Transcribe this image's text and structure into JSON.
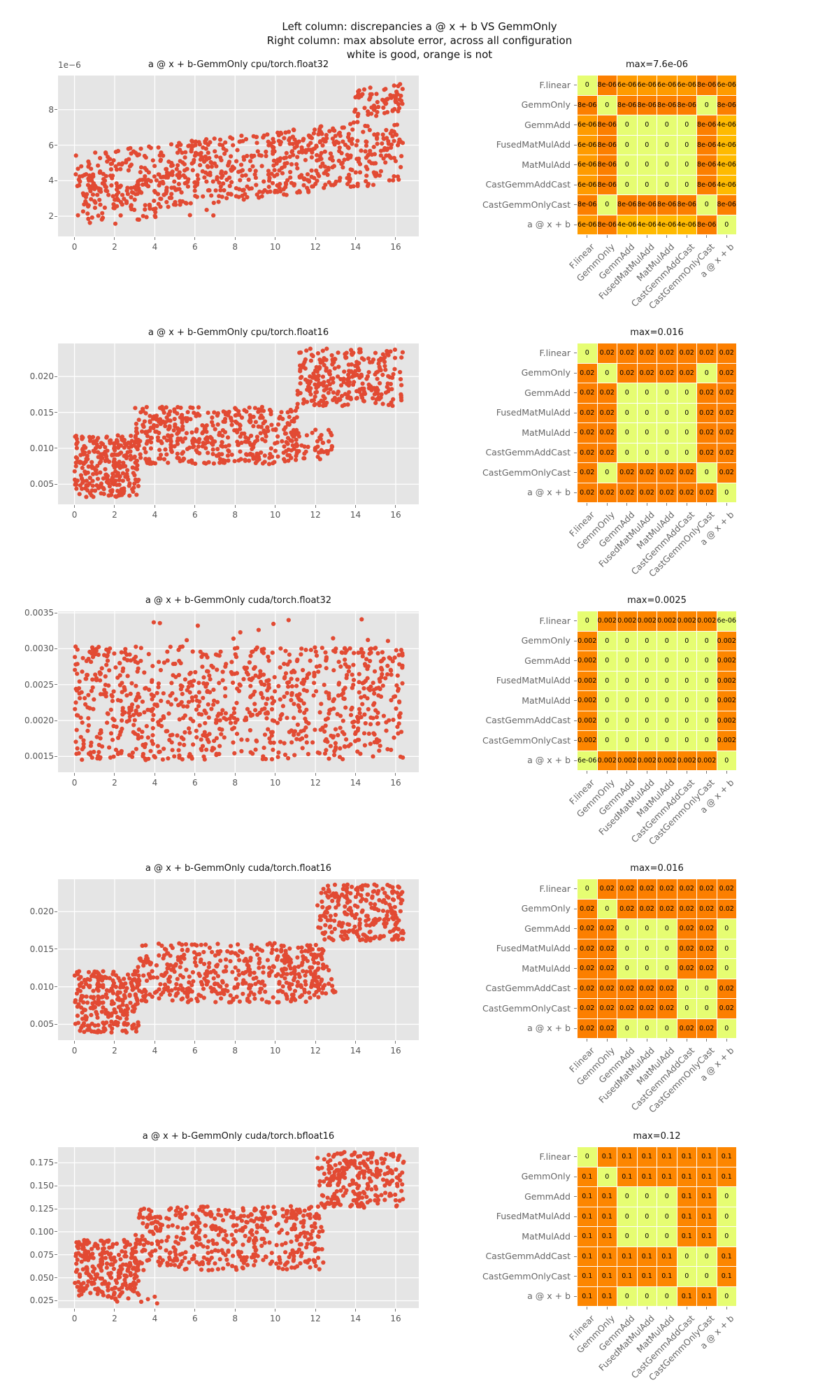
{
  "figure": {
    "title_lines": [
      "Left column: discrepancies a @ x + b VS GemmOnly",
      "Right column: max absolute error, across all configuration",
      "white is good, orange is not"
    ]
  },
  "labels": [
    "F.linear",
    "GemmOnly",
    "GemmAdd",
    "FusedMatMulAdd",
    "MatMulAdd",
    "CastGemmAddCast",
    "CastGemmOnlyCast",
    "a @ x + b"
  ],
  "colors": {
    "marker": "#e24a33",
    "plot_bg": "#e5e5e5",
    "grid": "#ffffff",
    "tick_label": "#555555",
    "heat_label": "#666666",
    "cell_text": "#000000",
    "colormap": "Wistia",
    "cmap_anchors": [
      [
        228,
        255,
        122
      ],
      [
        255,
        232,
        26
      ],
      [
        255,
        189,
        0
      ],
      [
        255,
        160,
        0
      ],
      [
        252,
        127,
        0
      ]
    ]
  },
  "chart_data": [
    {
      "scatter": {
        "type": "scatter",
        "title": "a @ x + b-GemmOnly cpu/torch.float32",
        "y_scale_label": "1e−6",
        "xlim": [
          -0.82,
          17.15
        ],
        "ylim": [
          0.86,
          9.92
        ],
        "xticks": [
          0,
          2,
          4,
          6,
          8,
          10,
          12,
          14,
          16
        ],
        "xtick_labels": [
          "0",
          "2",
          "4",
          "6",
          "8",
          "10",
          "12",
          "14",
          "16"
        ],
        "yticks": [
          2,
          4,
          6,
          8
        ],
        "ytick_labels": [
          "2",
          "4",
          "6",
          "8"
        ],
        "point_distribution": [
          {
            "x": [
              0,
              16.35
            ],
            "ylo": [
              1.9,
              3.9
            ],
            "yhi": [
              5.5,
              7.6
            ],
            "n": 800
          },
          {
            "x": [
              13.9,
              16.35
            ],
            "ylo": [
              7.5,
              7.8
            ],
            "yhi": [
              9.2,
              9.6
            ],
            "n": 70
          },
          {
            "x": [
              0.1,
              7.0
            ],
            "ylo": [
              1.4,
              1.8
            ],
            "yhi": [
              2.0,
              2.4
            ],
            "n": 18
          }
        ],
        "seed": 101
      },
      "heatmap": {
        "type": "heatmap",
        "title": "max=7.6e-06",
        "norm_map": {
          "0": 0.02,
          "4e-06": 0.53,
          "6e-06": 0.79,
          "8e-06": 1.0
        },
        "cells": [
          [
            "0",
            "8e-06",
            "6e-06",
            "6e-06",
            "6e-06",
            "6e-06",
            "8e-06",
            "6e-06"
          ],
          [
            "8e-06",
            "0",
            "8e-06",
            "8e-06",
            "8e-06",
            "8e-06",
            "0",
            "8e-06"
          ],
          [
            "6e-06",
            "8e-06",
            "0",
            "0",
            "0",
            "0",
            "8e-06",
            "4e-06"
          ],
          [
            "6e-06",
            "8e-06",
            "0",
            "0",
            "0",
            "0",
            "8e-06",
            "4e-06"
          ],
          [
            "6e-06",
            "8e-06",
            "0",
            "0",
            "0",
            "0",
            "8e-06",
            "4e-06"
          ],
          [
            "6e-06",
            "8e-06",
            "0",
            "0",
            "0",
            "0",
            "8e-06",
            "4e-06"
          ],
          [
            "8e-06",
            "0",
            "8e-06",
            "8e-06",
            "8e-06",
            "8e-06",
            "0",
            "8e-06"
          ],
          [
            "6e-06",
            "8e-06",
            "4e-06",
            "4e-06",
            "4e-06",
            "4e-06",
            "8e-06",
            "0"
          ]
        ]
      }
    },
    {
      "scatter": {
        "type": "scatter",
        "title": "a @ x + b-GemmOnly cpu/torch.float16",
        "y_scale_label": null,
        "xlim": [
          -0.82,
          17.15
        ],
        "ylim": [
          0.0022,
          0.0246
        ],
        "xticks": [
          0,
          2,
          4,
          6,
          8,
          10,
          12,
          14,
          16
        ],
        "xtick_labels": [
          "0",
          "2",
          "4",
          "6",
          "8",
          "10",
          "12",
          "14",
          "16"
        ],
        "yticks": [
          0.005,
          0.01,
          0.015,
          0.02
        ],
        "ytick_labels": [
          "0.005",
          "0.010",
          "0.015",
          "0.020"
        ],
        "point_distribution": [
          {
            "x": [
              0,
              3.2
            ],
            "ylo": [
              0.0032,
              0.0032
            ],
            "yhi": [
              0.0118,
              0.0118
            ],
            "n": 270
          },
          {
            "x": [
              3.0,
              11.1
            ],
            "ylo": [
              0.0078,
              0.0078
            ],
            "yhi": [
              0.0158,
              0.0158
            ],
            "n": 430
          },
          {
            "x": [
              10.6,
              12.9
            ],
            "ylo": [
              0.0082,
              0.0082
            ],
            "yhi": [
              0.0126,
              0.0126
            ],
            "n": 55
          },
          {
            "x": [
              11.1,
              16.4
            ],
            "ylo": [
              0.0159,
              0.0159
            ],
            "yhi": [
              0.0239,
              0.0239
            ],
            "n": 280
          }
        ],
        "seed": 202
      },
      "heatmap": {
        "type": "heatmap",
        "title": "max=0.016",
        "norm_map": {
          "0": 0.02,
          "0.02": 1.0
        },
        "cells": [
          [
            "0",
            "0.02",
            "0.02",
            "0.02",
            "0.02",
            "0.02",
            "0.02",
            "0.02"
          ],
          [
            "0.02",
            "0",
            "0.02",
            "0.02",
            "0.02",
            "0.02",
            "0",
            "0.02"
          ],
          [
            "0.02",
            "0.02",
            "0",
            "0",
            "0",
            "0",
            "0.02",
            "0.02"
          ],
          [
            "0.02",
            "0.02",
            "0",
            "0",
            "0",
            "0",
            "0.02",
            "0.02"
          ],
          [
            "0.02",
            "0.02",
            "0",
            "0",
            "0",
            "0",
            "0.02",
            "0.02"
          ],
          [
            "0.02",
            "0.02",
            "0",
            "0",
            "0",
            "0",
            "0.02",
            "0.02"
          ],
          [
            "0.02",
            "0",
            "0.02",
            "0.02",
            "0.02",
            "0.02",
            "0",
            "0.02"
          ],
          [
            "0.02",
            "0.02",
            "0.02",
            "0.02",
            "0.02",
            "0.02",
            "0.02",
            "0"
          ]
        ]
      }
    },
    {
      "scatter": {
        "type": "scatter",
        "title": "a @ x + b-GemmOnly cuda/torch.float32",
        "y_scale_label": null,
        "xlim": [
          -0.82,
          17.15
        ],
        "ylim": [
          0.00128,
          0.00352
        ],
        "xticks": [
          0,
          2,
          4,
          6,
          8,
          10,
          12,
          14,
          16
        ],
        "xtick_labels": [
          "0",
          "2",
          "4",
          "6",
          "8",
          "10",
          "12",
          "14",
          "16"
        ],
        "yticks": [
          0.0015,
          0.002,
          0.0025,
          0.003,
          0.0035
        ],
        "ytick_labels": [
          "0.0015",
          "0.0020",
          "0.0025",
          "0.0030",
          "0.0035"
        ],
        "point_distribution": [
          {
            "x": [
              0,
              16.4
            ],
            "ylo": [
              0.00145,
              0.00145
            ],
            "yhi": [
              0.00303,
              0.00303
            ],
            "n": 920
          },
          {
            "x": [
              0.5,
              16.3
            ],
            "ylo": [
              0.00304,
              0.00304
            ],
            "yhi": [
              0.00341,
              0.00341
            ],
            "n": 13
          }
        ],
        "seed": 303
      },
      "heatmap": {
        "type": "heatmap",
        "title": "max=0.0025",
        "norm_map": {
          "0": 0.02,
          "6e-06": 0.02,
          "0.002": 0.95
        },
        "cells": [
          [
            "0",
            "0.002",
            "0.002",
            "0.002",
            "0.002",
            "0.002",
            "0.002",
            "6e-06"
          ],
          [
            "0.002",
            "0",
            "0",
            "0",
            "0",
            "0",
            "0",
            "0.002"
          ],
          [
            "0.002",
            "0",
            "0",
            "0",
            "0",
            "0",
            "0",
            "0.002"
          ],
          [
            "0.002",
            "0",
            "0",
            "0",
            "0",
            "0",
            "0",
            "0.002"
          ],
          [
            "0.002",
            "0",
            "0",
            "0",
            "0",
            "0",
            "0",
            "0.002"
          ],
          [
            "0.002",
            "0",
            "0",
            "0",
            "0",
            "0",
            "0",
            "0.002"
          ],
          [
            "0.002",
            "0",
            "0",
            "0",
            "0",
            "0",
            "0",
            "0.002"
          ],
          [
            "6e-06",
            "0.002",
            "0.002",
            "0.002",
            "0.002",
            "0.002",
            "0.002",
            "0"
          ]
        ]
      }
    },
    {
      "scatter": {
        "type": "scatter",
        "title": "a @ x + b-GemmOnly cuda/torch.float16",
        "y_scale_label": null,
        "xlim": [
          -0.82,
          17.15
        ],
        "ylim": [
          0.0029,
          0.0243
        ],
        "xticks": [
          0,
          2,
          4,
          6,
          8,
          10,
          12,
          14,
          16
        ],
        "xtick_labels": [
          "0",
          "2",
          "4",
          "6",
          "8",
          "10",
          "12",
          "14",
          "16"
        ],
        "yticks": [
          0.005,
          0.01,
          0.015,
          0.02
        ],
        "ytick_labels": [
          "0.005",
          "0.010",
          "0.015",
          "0.020"
        ],
        "point_distribution": [
          {
            "x": [
              0,
              3.2
            ],
            "ylo": [
              0.0039,
              0.0039
            ],
            "yhi": [
              0.0121,
              0.0121
            ],
            "n": 260
          },
          {
            "x": [
              3.0,
              12.4
            ],
            "ylo": [
              0.0079,
              0.0079
            ],
            "yhi": [
              0.0158,
              0.0158
            ],
            "n": 470
          },
          {
            "x": [
              11.9,
              13.0
            ],
            "ylo": [
              0.009,
              0.009
            ],
            "yhi": [
              0.0128,
              0.0128
            ],
            "n": 25
          },
          {
            "x": [
              12.1,
              16.4
            ],
            "ylo": [
              0.0159,
              0.0159
            ],
            "yhi": [
              0.0236,
              0.0236
            ],
            "n": 255
          }
        ],
        "seed": 404
      },
      "heatmap": {
        "type": "heatmap",
        "title": "max=0.016",
        "norm_map": {
          "0": 0.02,
          "0.02": 1.0
        },
        "cells": [
          [
            "0",
            "0.02",
            "0.02",
            "0.02",
            "0.02",
            "0.02",
            "0.02",
            "0.02"
          ],
          [
            "0.02",
            "0",
            "0.02",
            "0.02",
            "0.02",
            "0.02",
            "0.02",
            "0.02"
          ],
          [
            "0.02",
            "0.02",
            "0",
            "0",
            "0",
            "0.02",
            "0.02",
            "0"
          ],
          [
            "0.02",
            "0.02",
            "0",
            "0",
            "0",
            "0.02",
            "0.02",
            "0"
          ],
          [
            "0.02",
            "0.02",
            "0",
            "0",
            "0",
            "0.02",
            "0.02",
            "0"
          ],
          [
            "0.02",
            "0.02",
            "0.02",
            "0.02",
            "0.02",
            "0",
            "0",
            "0.02"
          ],
          [
            "0.02",
            "0.02",
            "0.02",
            "0.02",
            "0.02",
            "0",
            "0",
            "0.02"
          ],
          [
            "0.02",
            "0.02",
            "0",
            "0",
            "0",
            "0.02",
            "0.02",
            "0"
          ]
        ]
      }
    },
    {
      "scatter": {
        "type": "scatter",
        "title": "a @ x + b-GemmOnly cuda/torch.bfloat16",
        "y_scale_label": null,
        "xlim": [
          -0.82,
          17.15
        ],
        "ylim": [
          0.017,
          0.192
        ],
        "xticks": [
          0,
          2,
          4,
          6,
          8,
          10,
          12,
          14,
          16
        ],
        "xtick_labels": [
          "0",
          "2",
          "4",
          "6",
          "8",
          "10",
          "12",
          "14",
          "16"
        ],
        "yticks": [
          0.025,
          0.05,
          0.075,
          0.1,
          0.125,
          0.15,
          0.175
        ],
        "ytick_labels": [
          "0.025",
          "0.050",
          "0.075",
          "0.100",
          "0.125",
          "0.150",
          "0.175"
        ],
        "point_distribution": [
          {
            "x": [
              0,
              3.2
            ],
            "ylo": [
              0.03,
              0.03
            ],
            "yhi": [
              0.092,
              0.092
            ],
            "n": 250
          },
          {
            "x": [
              1.6,
              4.4
            ],
            "ylo": [
              0.022,
              0.022
            ],
            "yhi": [
              0.03,
              0.03
            ],
            "n": 10
          },
          {
            "x": [
              3.0,
              12.4
            ],
            "ylo": [
              0.058,
              0.058
            ],
            "yhi": [
              0.128,
              0.128
            ],
            "n": 470
          },
          {
            "x": [
              12.1,
              16.4
            ],
            "ylo": [
              0.126,
              0.126
            ],
            "yhi": [
              0.187,
              0.187
            ],
            "n": 255
          }
        ],
        "seed": 505
      },
      "heatmap": {
        "type": "heatmap",
        "title": "max=0.12",
        "norm_map": {
          "0": 0.02,
          "0.1": 0.95
        },
        "cells": [
          [
            "0",
            "0.1",
            "0.1",
            "0.1",
            "0.1",
            "0.1",
            "0.1",
            "0.1"
          ],
          [
            "0.1",
            "0",
            "0.1",
            "0.1",
            "0.1",
            "0.1",
            "0.1",
            "0.1"
          ],
          [
            "0.1",
            "0.1",
            "0",
            "0",
            "0",
            "0.1",
            "0.1",
            "0"
          ],
          [
            "0.1",
            "0.1",
            "0",
            "0",
            "0",
            "0.1",
            "0.1",
            "0"
          ],
          [
            "0.1",
            "0.1",
            "0",
            "0",
            "0",
            "0.1",
            "0.1",
            "0"
          ],
          [
            "0.1",
            "0.1",
            "0.1",
            "0.1",
            "0.1",
            "0",
            "0",
            "0.1"
          ],
          [
            "0.1",
            "0.1",
            "0.1",
            "0.1",
            "0.1",
            "0",
            "0",
            "0.1"
          ],
          [
            "0.1",
            "0.1",
            "0",
            "0",
            "0",
            "0.1",
            "0.1",
            "0"
          ]
        ]
      }
    }
  ]
}
